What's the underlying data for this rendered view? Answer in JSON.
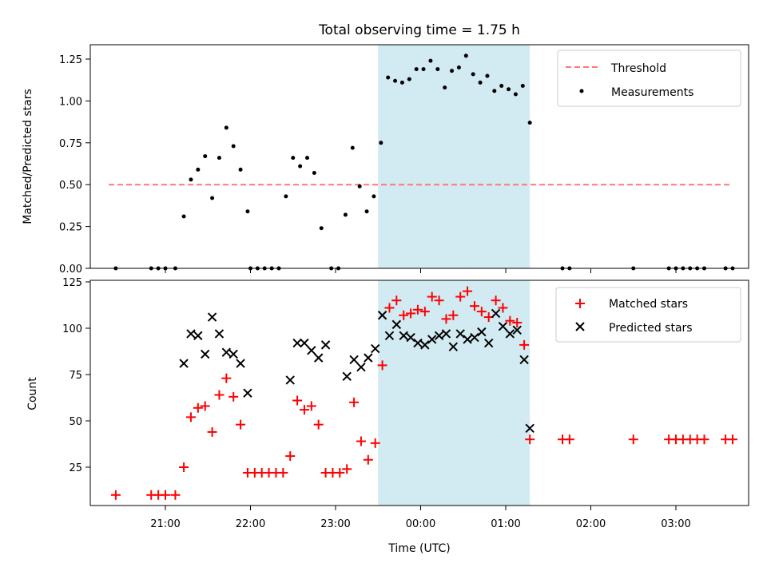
{
  "chart_data": [
    {
      "type": "scatter",
      "title": "Total observing time = 1.75 h",
      "xlabel": "",
      "ylabel": "Matched/Predicted stars",
      "ylim": [
        0,
        1.35
      ],
      "yticks": [
        "0.00",
        "0.25",
        "0.50",
        "0.75",
        "1.00",
        "1.25"
      ],
      "shaded_region": {
        "x0": "23:30",
        "x1": "01:17",
        "color": "#add8e6"
      },
      "threshold": {
        "name": "Threshold",
        "y": 0.5,
        "x0": "20:20",
        "x1": "03:40",
        "color": "#ff7777"
      },
      "legend": {
        "position": "upper right",
        "entries": [
          "Threshold",
          "Measurements"
        ]
      },
      "series": [
        {
          "name": "Measurements",
          "color": "#000000",
          "points": [
            [
              "20:25",
              0.0
            ],
            [
              "20:50",
              0.0
            ],
            [
              "20:55",
              0.0
            ],
            [
              "21:00",
              0.0
            ],
            [
              "21:07",
              0.0
            ],
            [
              "21:13",
              0.31
            ],
            [
              "21:18",
              0.53
            ],
            [
              "21:23",
              0.59
            ],
            [
              "21:28",
              0.67
            ],
            [
              "21:33",
              0.42
            ],
            [
              "21:38",
              0.66
            ],
            [
              "21:43",
              0.84
            ],
            [
              "21:48",
              0.73
            ],
            [
              "21:53",
              0.59
            ],
            [
              "21:58",
              0.34
            ],
            [
              "22:00",
              0.0
            ],
            [
              "22:05",
              0.0
            ],
            [
              "22:10",
              0.0
            ],
            [
              "22:15",
              0.0
            ],
            [
              "22:20",
              0.0
            ],
            [
              "22:25",
              0.43
            ],
            [
              "22:30",
              0.66
            ],
            [
              "22:35",
              0.61
            ],
            [
              "22:40",
              0.66
            ],
            [
              "22:45",
              0.57
            ],
            [
              "22:50",
              0.24
            ],
            [
              "22:57",
              0.0
            ],
            [
              "23:02",
              0.0
            ],
            [
              "23:07",
              0.32
            ],
            [
              "23:12",
              0.72
            ],
            [
              "23:17",
              0.49
            ],
            [
              "23:22",
              0.34
            ],
            [
              "23:27",
              0.43
            ],
            [
              "23:32",
              0.75
            ],
            [
              "23:37",
              1.14
            ],
            [
              "23:42",
              1.12
            ],
            [
              "23:47",
              1.11
            ],
            [
              "23:52",
              1.13
            ],
            [
              "23:57",
              1.19
            ],
            [
              "00:02",
              1.19
            ],
            [
              "00:07",
              1.24
            ],
            [
              "00:12",
              1.19
            ],
            [
              "00:17",
              1.08
            ],
            [
              "00:22",
              1.18
            ],
            [
              "00:27",
              1.2
            ],
            [
              "00:32",
              1.27
            ],
            [
              "00:37",
              1.16
            ],
            [
              "00:42",
              1.11
            ],
            [
              "00:47",
              1.15
            ],
            [
              "00:52",
              1.06
            ],
            [
              "00:57",
              1.09
            ],
            [
              "01:02",
              1.07
            ],
            [
              "01:07",
              1.04
            ],
            [
              "01:12",
              1.09
            ],
            [
              "01:17",
              0.87
            ],
            [
              "01:40",
              0.0
            ],
            [
              "01:45",
              0.0
            ],
            [
              "02:30",
              0.0
            ],
            [
              "02:55",
              0.0
            ],
            [
              "03:00",
              0.0
            ],
            [
              "03:05",
              0.0
            ],
            [
              "03:10",
              0.0
            ],
            [
              "03:15",
              0.0
            ],
            [
              "03:20",
              0.0
            ],
            [
              "03:35",
              0.0
            ],
            [
              "03:40",
              0.0
            ]
          ]
        }
      ]
    },
    {
      "type": "scatter",
      "title": "",
      "xlabel": "Time (UTC)",
      "ylabel": "Count",
      "ylim": [
        4,
        125
      ],
      "yticks": [
        "25",
        "50",
        "75",
        "100",
        "125"
      ],
      "xticks": [
        "21:00",
        "22:00",
        "23:00",
        "00:00",
        "01:00",
        "02:00",
        "03:00"
      ],
      "shaded_region": {
        "x0": "23:30",
        "x1": "01:17",
        "color": "#add8e6"
      },
      "legend": {
        "position": "upper right",
        "entries": [
          "Matched stars",
          "Predicted stars"
        ]
      },
      "series": [
        {
          "name": "Matched stars",
          "marker": "+",
          "color": "#ff0000",
          "points": [
            [
              "20:25",
              10
            ],
            [
              "20:50",
              10
            ],
            [
              "20:55",
              10
            ],
            [
              "21:00",
              10
            ],
            [
              "21:07",
              10
            ],
            [
              "21:13",
              25
            ],
            [
              "21:18",
              52
            ],
            [
              "21:23",
              57
            ],
            [
              "21:28",
              58
            ],
            [
              "21:33",
              44
            ],
            [
              "21:38",
              64
            ],
            [
              "21:43",
              73
            ],
            [
              "21:48",
              63
            ],
            [
              "21:53",
              48
            ],
            [
              "21:58",
              22
            ],
            [
              "22:03",
              22
            ],
            [
              "22:08",
              22
            ],
            [
              "22:13",
              22
            ],
            [
              "22:18",
              22
            ],
            [
              "22:23",
              22
            ],
            [
              "22:28",
              31
            ],
            [
              "22:33",
              61
            ],
            [
              "22:38",
              56
            ],
            [
              "22:43",
              58
            ],
            [
              "22:48",
              48
            ],
            [
              "22:53",
              22
            ],
            [
              "22:58",
              22
            ],
            [
              "23:03",
              22
            ],
            [
              "23:08",
              24
            ],
            [
              "23:13",
              60
            ],
            [
              "23:18",
              39
            ],
            [
              "23:23",
              29
            ],
            [
              "23:28",
              38
            ],
            [
              "23:33",
              80
            ],
            [
              "23:38",
              111
            ],
            [
              "23:43",
              115
            ],
            [
              "23:48",
              107
            ],
            [
              "23:53",
              108
            ],
            [
              "23:58",
              110
            ],
            [
              "00:03",
              109
            ],
            [
              "00:08",
              117
            ],
            [
              "00:13",
              115
            ],
            [
              "00:18",
              105
            ],
            [
              "00:23",
              107
            ],
            [
              "00:28",
              117
            ],
            [
              "00:33",
              120
            ],
            [
              "00:38",
              112
            ],
            [
              "00:43",
              109
            ],
            [
              "00:48",
              106
            ],
            [
              "00:53",
              115
            ],
            [
              "00:58",
              111
            ],
            [
              "01:03",
              104
            ],
            [
              "01:08",
              103
            ],
            [
              "01:13",
              91
            ],
            [
              "01:17",
              40
            ],
            [
              "01:40",
              40
            ],
            [
              "01:45",
              40
            ],
            [
              "02:30",
              40
            ],
            [
              "02:55",
              40
            ],
            [
              "03:00",
              40
            ],
            [
              "03:05",
              40
            ],
            [
              "03:10",
              40
            ],
            [
              "03:15",
              40
            ],
            [
              "03:20",
              40
            ],
            [
              "03:35",
              40
            ],
            [
              "03:40",
              40
            ]
          ]
        },
        {
          "name": "Predicted stars",
          "marker": "x",
          "color": "#000000",
          "points": [
            [
              "21:13",
              81
            ],
            [
              "21:18",
              97
            ],
            [
              "21:23",
              96
            ],
            [
              "21:28",
              86
            ],
            [
              "21:33",
              106
            ],
            [
              "21:38",
              97
            ],
            [
              "21:43",
              87
            ],
            [
              "21:48",
              86
            ],
            [
              "21:53",
              81
            ],
            [
              "21:58",
              65
            ],
            [
              "22:28",
              72
            ],
            [
              "22:33",
              92
            ],
            [
              "22:38",
              92
            ],
            [
              "22:43",
              88
            ],
            [
              "22:48",
              84
            ],
            [
              "22:53",
              91
            ],
            [
              "23:08",
              74
            ],
            [
              "23:13",
              83
            ],
            [
              "23:18",
              79
            ],
            [
              "23:23",
              84
            ],
            [
              "23:28",
              89
            ],
            [
              "23:33",
              107
            ],
            [
              "23:38",
              96
            ],
            [
              "23:43",
              102
            ],
            [
              "23:48",
              96
            ],
            [
              "23:53",
              95
            ],
            [
              "23:58",
              92
            ],
            [
              "00:03",
              91
            ],
            [
              "00:08",
              94
            ],
            [
              "00:13",
              96
            ],
            [
              "00:18",
              97
            ],
            [
              "00:23",
              90
            ],
            [
              "00:28",
              97
            ],
            [
              "00:33",
              94
            ],
            [
              "00:38",
              95
            ],
            [
              "00:43",
              98
            ],
            [
              "00:48",
              92
            ],
            [
              "00:53",
              108
            ],
            [
              "00:58",
              101
            ],
            [
              "01:03",
              97
            ],
            [
              "01:08",
              99
            ],
            [
              "01:13",
              83
            ],
            [
              "01:17",
              46
            ]
          ]
        }
      ]
    }
  ]
}
